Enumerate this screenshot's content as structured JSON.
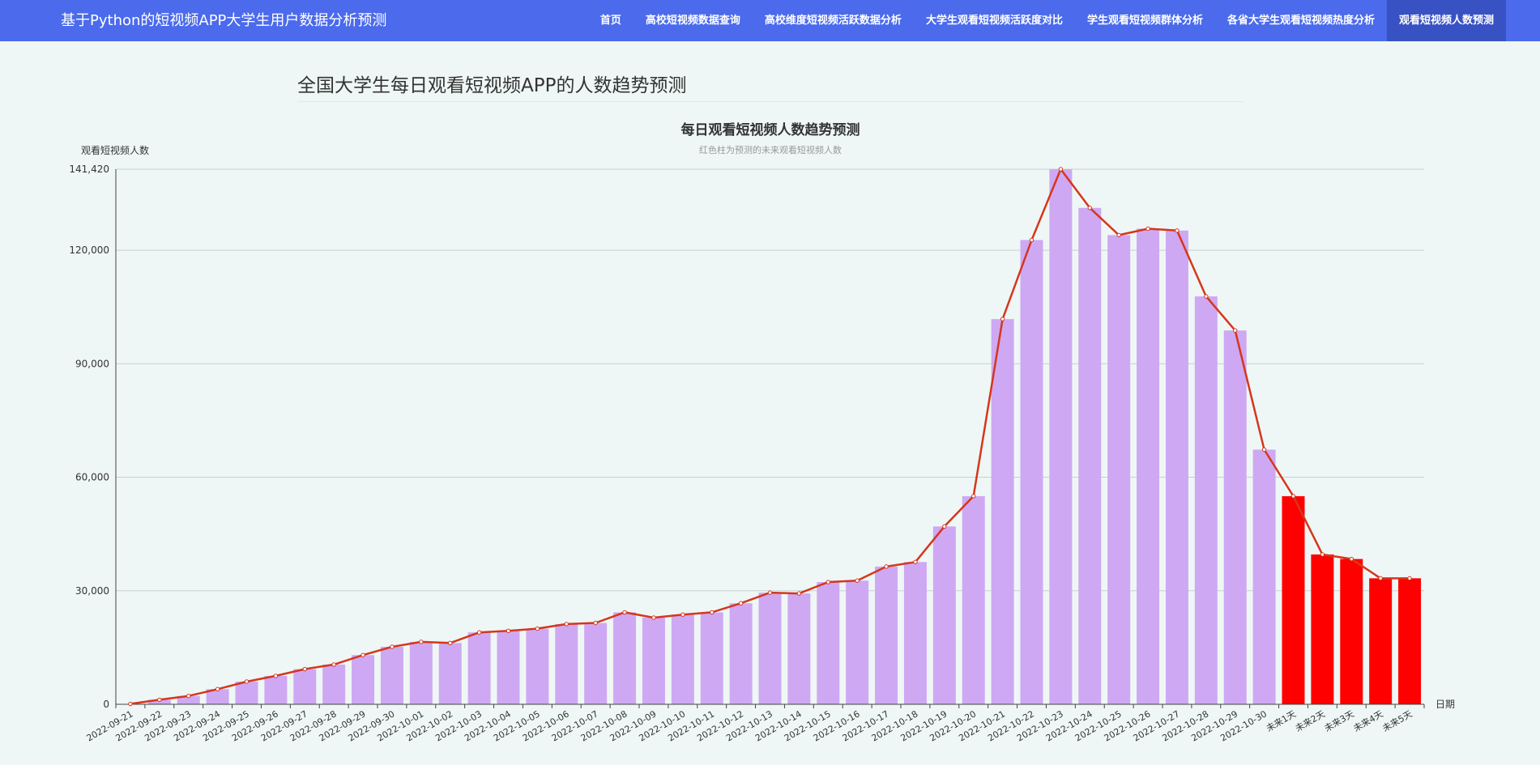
{
  "navbar": {
    "brand": "基于Python的短视频APP大学生用户数据分析预测",
    "items": [
      {
        "label": "首页"
      },
      {
        "label": "高校短视频数据查询"
      },
      {
        "label": "高校维度短视频活跃数据分析"
      },
      {
        "label": "大学生观看短视频活跃度对比"
      },
      {
        "label": "学生观看短视频群体分析"
      },
      {
        "label": "各省大学生观看短视频热度分析"
      },
      {
        "label": "观看短视频人数预测"
      }
    ],
    "active_index": 6
  },
  "page": {
    "title": "全国大学生每日观看短视频APP的人数趋势预测"
  },
  "chart_data": {
    "type": "bar",
    "title": "每日观看短视频人数趋势预测",
    "subtitle": "红色柱为预测的未来观看短视频人数",
    "ylabel": "观看短视频人数",
    "xlabel": "日期",
    "ylim": [
      0,
      141420
    ],
    "yticks": [
      0,
      30000,
      60000,
      90000,
      120000,
      141420
    ],
    "ytick_labels": [
      "0",
      "30,000",
      "60,000",
      "90,000",
      "120,000",
      "141,420"
    ],
    "grid": true,
    "categories": [
      "2022-09-21",
      "2022-09-22",
      "2022-09-23",
      "2022-09-24",
      "2022-09-25",
      "2022-09-26",
      "2022-09-27",
      "2022-09-28",
      "2022-09-29",
      "2022-09-30",
      "2022-10-01",
      "2022-10-02",
      "2022-10-03",
      "2022-10-04",
      "2022-10-05",
      "2022-10-06",
      "2022-10-07",
      "2022-10-08",
      "2022-10-09",
      "2022-10-10",
      "2022-10-11",
      "2022-10-12",
      "2022-10-13",
      "2022-10-14",
      "2022-10-15",
      "2022-10-16",
      "2022-10-17",
      "2022-10-18",
      "2022-10-19",
      "2022-10-20",
      "2022-10-21",
      "2022-10-22",
      "2022-10-23",
      "2022-10-24",
      "2022-10-25",
      "2022-10-26",
      "2022-10-27",
      "2022-10-28",
      "2022-10-29",
      "2022-10-30",
      "未来1天",
      "未来2天",
      "未来3天",
      "未来4天",
      "未来5天"
    ],
    "values": [
      100,
      1200,
      2200,
      4000,
      6000,
      7500,
      9300,
      10500,
      13000,
      15200,
      16500,
      16200,
      19000,
      19400,
      20000,
      21200,
      21500,
      24300,
      22900,
      23700,
      24300,
      26700,
      29500,
      29300,
      32300,
      32700,
      36400,
      37600,
      47000,
      55000,
      101800,
      122700,
      141420,
      131200,
      124000,
      125700,
      125200,
      107800,
      98800,
      67300,
      55000,
      39600,
      38400,
      33300,
      33300
    ],
    "historical_count": 40,
    "colors": {
      "historical_bar": "#cfa8f3",
      "forecast_bar": "#ff0000",
      "line": "#d6361c",
      "marker_fill": "#ffffff",
      "grid": "#c8d0cf",
      "axis": "#444444"
    }
  }
}
